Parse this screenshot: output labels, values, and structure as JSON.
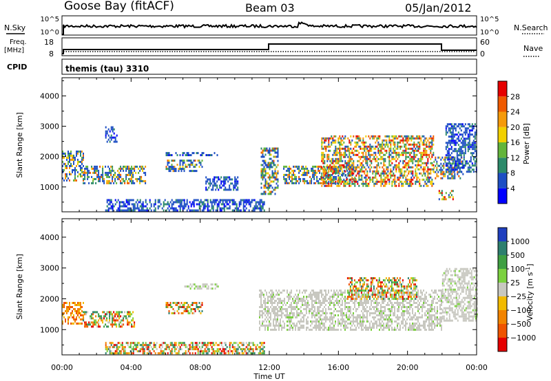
{
  "header": {
    "station": "Goose Bay (fitACF)",
    "beam": "Beam 03",
    "date": "05/Jan/2012"
  },
  "strip": {
    "nsky_label": "N.Sky",
    "nsky_top": "10^5",
    "nsky_bottom": "10^0",
    "nsearch_label": "N.Search",
    "nsearch_top": "10^5",
    "nsearch_bottom": "10^0",
    "freq_label": "Freq.",
    "freq_unit": "[MHz]",
    "freq_top": "18",
    "freq_bottom": "8",
    "nave_label": "Nave",
    "nave_top": "60",
    "nave_bottom": "0",
    "cpid_label": "CPID",
    "cpid_value": "themis (tau) 3310"
  },
  "axes": {
    "xlabel": "Time UT",
    "ylabel": "Slant Range [km]",
    "xticks": [
      "00:00",
      "04:00",
      "08:00",
      "12:00",
      "16:00",
      "20:00",
      "00:00"
    ],
    "yticks": [
      "1000",
      "2000",
      "3000",
      "4000"
    ]
  },
  "colorbars": {
    "power": {
      "label": "Power [dB]",
      "ticks": [
        "4",
        "8",
        "12",
        "16",
        "20",
        "24",
        "28"
      ],
      "colors": [
        "#0000ff",
        "#1e4fc4",
        "#2c8a6a",
        "#63b53b",
        "#f2d000",
        "#f59a0a",
        "#ef5a00",
        "#e60000"
      ]
    },
    "velocity": {
      "label": "Velocity [m s",
      "label_sup": "-1",
      "label_end": "]",
      "ticks": [
        "1000",
        "500",
        "100",
        "25",
        "−25",
        "−100",
        "−500",
        "−1000"
      ],
      "colors": [
        "#1f3fbf",
        "#2d7f6e",
        "#3f9f42",
        "#7bd13f",
        "#c8c8c0",
        "#f2ba00",
        "#f28400",
        "#ef5400",
        "#e50000"
      ]
    }
  },
  "chart_data": [
    {
      "type": "heatmap",
      "name": "power",
      "x_range_hours": [
        0,
        24
      ],
      "ylim": [
        180,
        4600
      ],
      "regions": [
        {
          "t": [
            0.0,
            1.2
          ],
          "r": [
            1200,
            2200
          ],
          "level": "mid"
        },
        {
          "t": [
            1.2,
            4.8
          ],
          "r": [
            1100,
            1700
          ],
          "level": "mid"
        },
        {
          "t": [
            2.5,
            3.2
          ],
          "r": [
            2500,
            3000
          ],
          "level": "low"
        },
        {
          "t": [
            6.0,
            8.1
          ],
          "r": [
            1500,
            1900
          ],
          "level": "mid"
        },
        {
          "t": [
            6.0,
            9.0
          ],
          "r": [
            2050,
            2150
          ],
          "level": "low"
        },
        {
          "t": [
            8.3,
            10.2
          ],
          "r": [
            900,
            1350
          ],
          "level": "low"
        },
        {
          "t": [
            2.5,
            11.7
          ],
          "r": [
            200,
            600
          ],
          "level": "low"
        },
        {
          "t": [
            11.5,
            12.5
          ],
          "r": [
            800,
            2300
          ],
          "level": "mid"
        },
        {
          "t": [
            12.8,
            17.0
          ],
          "r": [
            1100,
            1700
          ],
          "level": "mid"
        },
        {
          "t": [
            15.0,
            21.5
          ],
          "r": [
            1000,
            2700
          ],
          "level": "high"
        },
        {
          "t": [
            21.5,
            23.2
          ],
          "r": [
            1300,
            2000
          ],
          "level": "mid"
        },
        {
          "t": [
            22.2,
            24.0
          ],
          "r": [
            1500,
            3100
          ],
          "level": "low"
        },
        {
          "t": [
            21.8,
            22.6
          ],
          "r": [
            600,
            900
          ],
          "level": "high"
        }
      ]
    },
    {
      "type": "heatmap",
      "name": "velocity",
      "x_range_hours": [
        0,
        24
      ],
      "ylim": [
        180,
        4600
      ],
      "regions": [
        {
          "t": [
            0.0,
            1.2
          ],
          "r": [
            1200,
            1900
          ],
          "level": "neg"
        },
        {
          "t": [
            1.2,
            4.2
          ],
          "r": [
            1100,
            1600
          ],
          "level": "mixed"
        },
        {
          "t": [
            6.0,
            8.1
          ],
          "r": [
            1500,
            1900
          ],
          "level": "mixed"
        },
        {
          "t": [
            7.0,
            9.0
          ],
          "r": [
            2300,
            2500
          ],
          "level": "gs"
        },
        {
          "t": [
            2.5,
            11.7
          ],
          "r": [
            200,
            600
          ],
          "level": "mixed"
        },
        {
          "t": [
            11.4,
            22.0
          ],
          "r": [
            1000,
            2300
          ],
          "level": "gs"
        },
        {
          "t": [
            16.5,
            20.5
          ],
          "r": [
            2000,
            2700
          ],
          "level": "mixed"
        },
        {
          "t": [
            22.0,
            24.0
          ],
          "r": [
            1300,
            3000
          ],
          "level": "gs"
        }
      ]
    }
  ]
}
